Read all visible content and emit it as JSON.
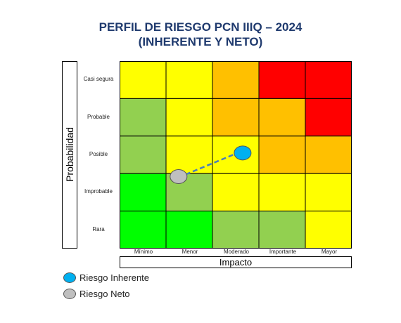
{
  "header": {
    "title_line1": "PERFIL DE RIESGO PCN IIIQ – 2024",
    "title_line2": "(INHERENTE Y NETO)"
  },
  "chart_data": {
    "type": "heatmap",
    "title": "PERFIL DE RIESGO PCN IIIQ – 2024 (INHERENTE Y NETO)",
    "xlabel": "Impacto",
    "ylabel": "Probabilidad",
    "x_categories": [
      "Mínimo",
      "Menor",
      "Moderado",
      "Importante",
      "Mayor"
    ],
    "y_categories_top_to_bottom": [
      "Casi segura",
      "Probable",
      "Posible",
      "Improbable",
      "Rara"
    ],
    "cell_colors": [
      [
        "#ffff00",
        "#ffff00",
        "#ffc000",
        "#ff0000",
        "#ff0000"
      ],
      [
        "#92d050",
        "#ffff00",
        "#ffc000",
        "#ffc000",
        "#ff0000"
      ],
      [
        "#92d050",
        "#ffff00",
        "#ffff00",
        "#ffc000",
        "#ffc000"
      ],
      [
        "#00ff00",
        "#92d050",
        "#ffff00",
        "#ffff00",
        "#ffff00"
      ],
      [
        "#00ff00",
        "#00ff00",
        "#92d050",
        "#92d050",
        "#ffff00"
      ]
    ],
    "points": [
      {
        "name": "Riesgo Inherente",
        "x": "Moderado",
        "y": "Posible",
        "color": "#00b0f0"
      },
      {
        "name": "Riesgo Neto",
        "x": "Menor",
        "y": "Improbable",
        "color": "#bfbfbf"
      }
    ],
    "connector": {
      "from": "Riesgo Neto",
      "to": "Riesgo Inherente",
      "style": "dashed",
      "color": "#4a7ebb"
    },
    "legend_position": "bottom-left"
  }
}
